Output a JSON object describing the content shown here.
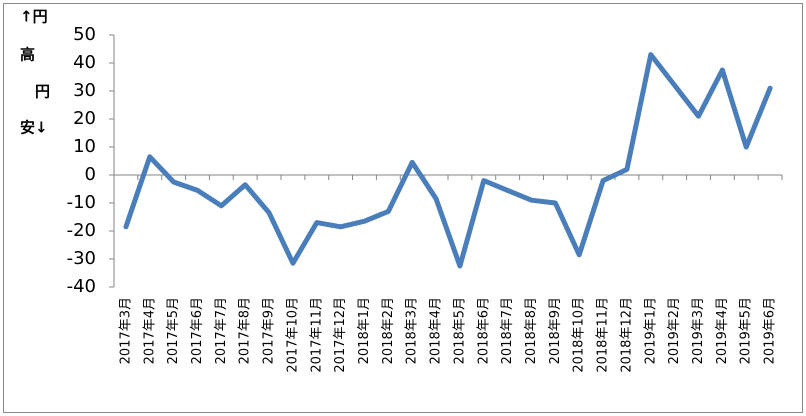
{
  "chart_data": {
    "type": "line",
    "ylabel_lines": [
      "↑円",
      "高",
      "円",
      "安↓"
    ],
    "categories": [
      "2017年3月",
      "2017年4月",
      "2017年5月",
      "2017年6月",
      "2017年7月",
      "2017年8月",
      "2017年9月",
      "2017年10月",
      "2017年11月",
      "2017年12月",
      "2018年1月",
      "2018年2月",
      "2018年3月",
      "2018年4月",
      "2018年5月",
      "2018年6月",
      "2018年7月",
      "2018年8月",
      "2018年9月",
      "2018年10月",
      "2018年11月",
      "2018年12月",
      "2019年1月",
      "2019年2月",
      "2019年3月",
      "2019年4月",
      "2019年5月",
      "2019年6月"
    ],
    "values": [
      -18.5,
      6.5,
      -2.5,
      -5.5,
      -11,
      -3.5,
      -13.5,
      -31.5,
      -17,
      -18.5,
      -16.5,
      -13,
      4.5,
      -8.5,
      -32.5,
      -2,
      -5.5,
      -9,
      -10,
      -28.5,
      -2,
      2,
      43,
      32,
      21,
      37.5,
      10,
      31
    ],
    "color": "#4a7ebb",
    "ylim": [
      -40,
      50
    ],
    "yticks": [
      -40,
      -30,
      -20,
      -10,
      0,
      10,
      20,
      30,
      40,
      50
    ],
    "grid": false
  }
}
